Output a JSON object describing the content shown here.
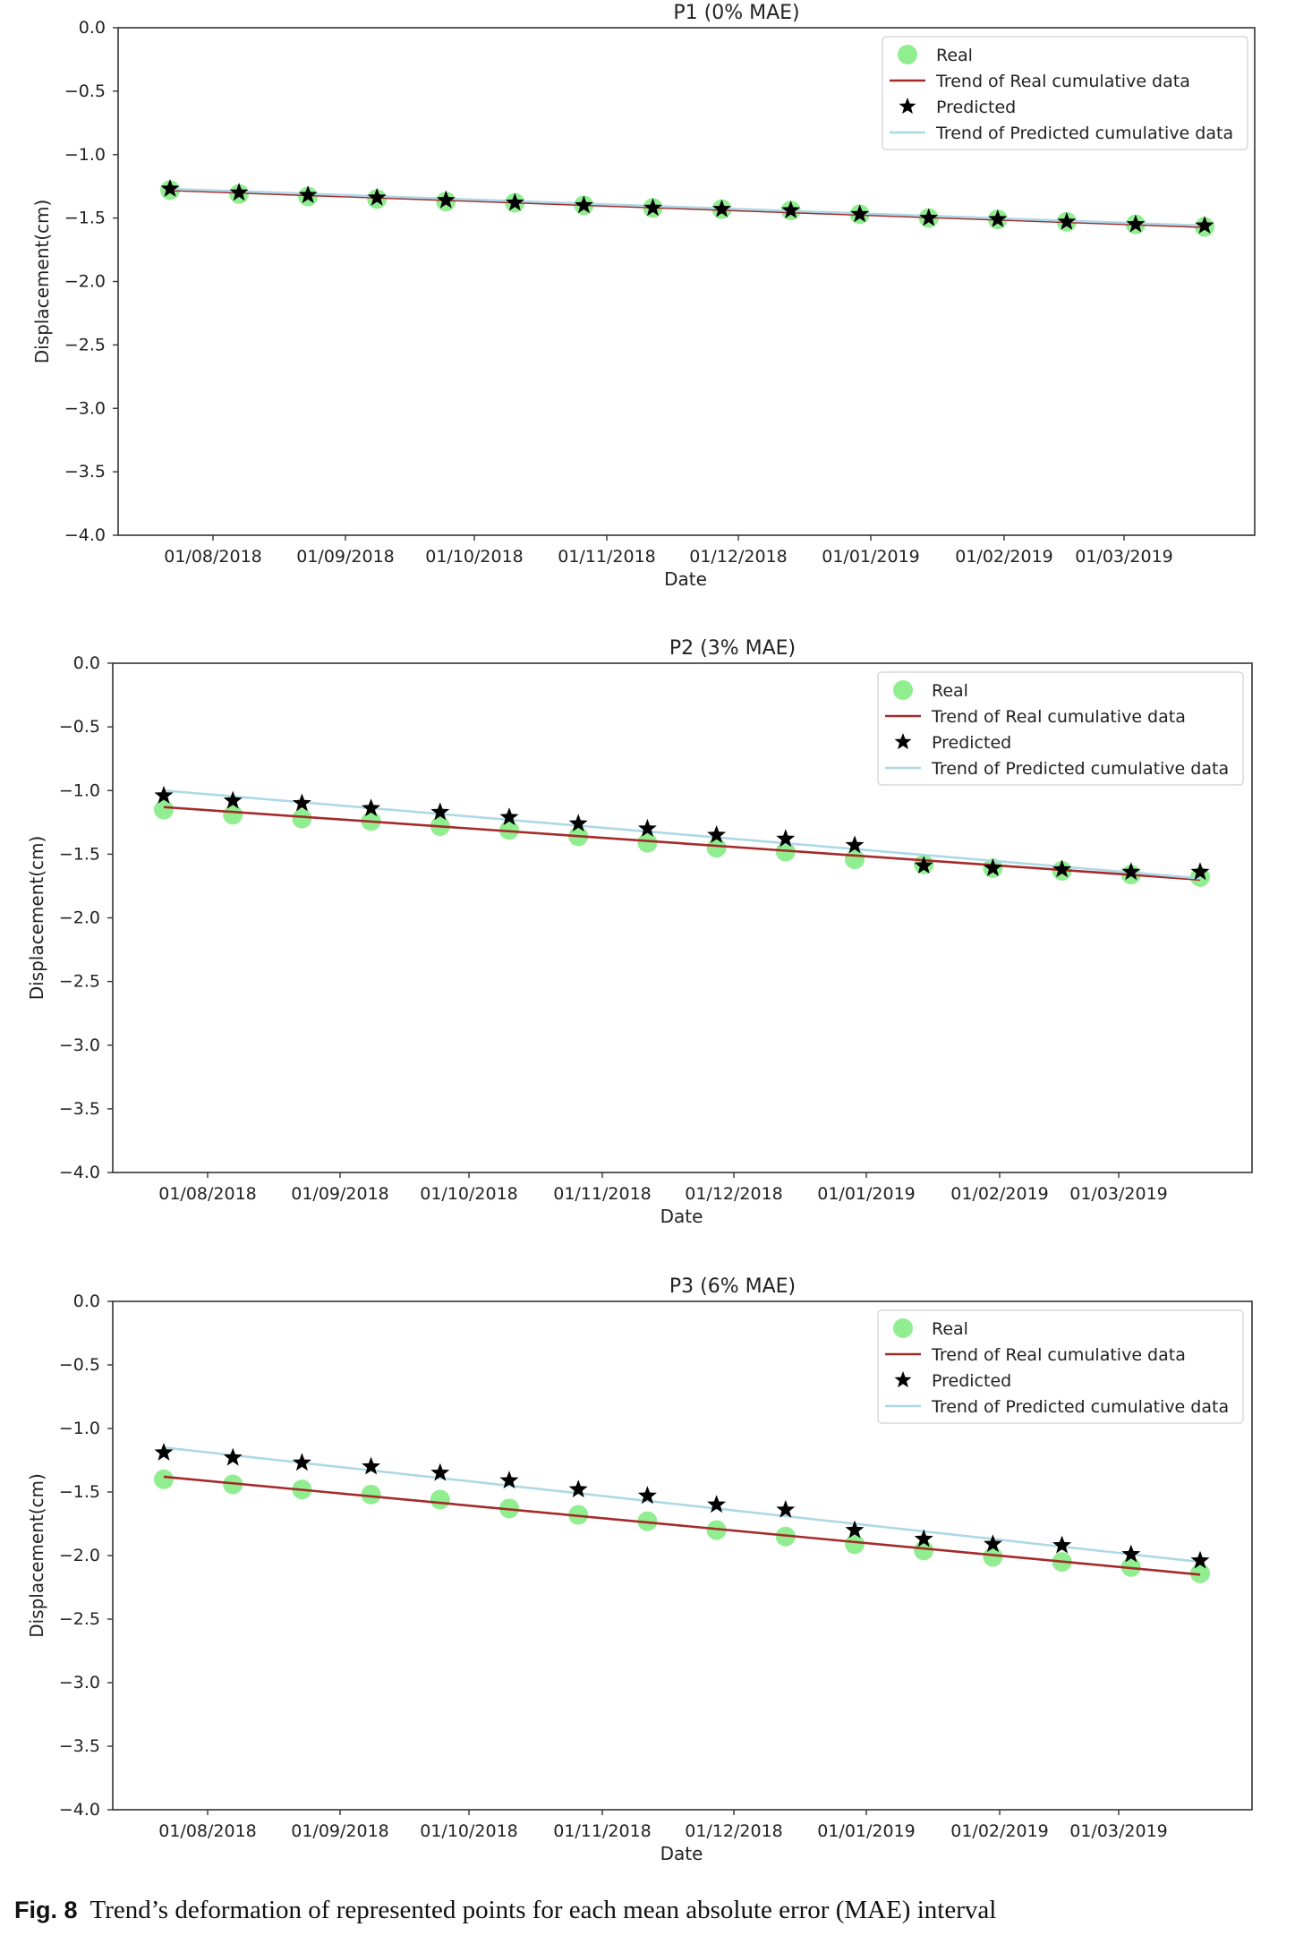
{
  "chart_data": [
    {
      "type": "line",
      "title": "P1 (0% MAE)",
      "xlabel": "Date",
      "ylabel": "Displacement(cm)",
      "ylim": [
        -4.0,
        0.0
      ],
      "yticks": [
        "0.0",
        "−0.5",
        "−1.0",
        "−1.5",
        "−2.0",
        "−2.5",
        "−3.0",
        "−3.5",
        "−4.0"
      ],
      "xtick_labels": [
        "01/08/2018",
        "01/09/2018",
        "01/10/2018",
        "01/11/2018",
        "01/12/2018",
        "01/01/2019",
        "01/02/2019",
        "01/03/2019"
      ],
      "legend": [
        "Real",
        "Trend of Real cumulative data",
        "Predicted",
        "Trend of Predicted cumulative data"
      ],
      "legend_position": "top-right",
      "x_index": [
        1,
        2,
        3,
        4,
        5,
        6,
        7,
        8,
        9,
        10,
        11,
        12,
        13,
        14,
        15,
        16
      ],
      "series": [
        {
          "name": "Real",
          "kind": "scatter",
          "color": "#90ee90",
          "values": [
            -1.28,
            -1.31,
            -1.33,
            -1.35,
            -1.37,
            -1.38,
            -1.4,
            -1.42,
            -1.43,
            -1.44,
            -1.47,
            -1.5,
            -1.51,
            -1.53,
            -1.55,
            -1.57
          ]
        },
        {
          "name": "Trend of Real cumulative data",
          "kind": "line",
          "color": "#a52a2a",
          "values": [
            -1.28,
            -1.57
          ]
        },
        {
          "name": "Predicted",
          "kind": "scatter",
          "color": "#000000",
          "values": [
            -1.27,
            -1.3,
            -1.32,
            -1.34,
            -1.36,
            -1.38,
            -1.4,
            -1.42,
            -1.43,
            -1.44,
            -1.47,
            -1.5,
            -1.51,
            -1.53,
            -1.55,
            -1.56
          ]
        },
        {
          "name": "Trend of Predicted cumulative data",
          "kind": "line",
          "color": "#add8e6",
          "values": [
            -1.27,
            -1.56
          ]
        }
      ]
    },
    {
      "type": "line",
      "title": "P2 (3% MAE)",
      "xlabel": "Date",
      "ylabel": "Displacement(cm)",
      "ylim": [
        -4.0,
        0.0
      ],
      "yticks": [
        "0.0",
        "−0.5",
        "−1.0",
        "−1.5",
        "−2.0",
        "−2.5",
        "−3.0",
        "−3.5",
        "−4.0"
      ],
      "xtick_labels": [
        "01/08/2018",
        "01/09/2018",
        "01/10/2018",
        "01/11/2018",
        "01/12/2018",
        "01/01/2019",
        "01/02/2019",
        "01/03/2019"
      ],
      "legend": [
        "Real",
        "Trend of Real cumulative data",
        "Predicted",
        "Trend of Predicted cumulative data"
      ],
      "legend_position": "top-right",
      "x_index": [
        1,
        2,
        3,
        4,
        5,
        6,
        7,
        8,
        9,
        10,
        11,
        12,
        13,
        14,
        15,
        16
      ],
      "series": [
        {
          "name": "Real",
          "kind": "scatter",
          "color": "#90ee90",
          "values": [
            -1.15,
            -1.19,
            -1.22,
            -1.24,
            -1.28,
            -1.31,
            -1.36,
            -1.41,
            -1.45,
            -1.48,
            -1.54,
            -1.58,
            -1.61,
            -1.63,
            -1.66,
            -1.68
          ]
        },
        {
          "name": "Trend of Real cumulative data",
          "kind": "line",
          "color": "#a52a2a",
          "values": [
            -1.13,
            -1.7
          ]
        },
        {
          "name": "Predicted",
          "kind": "scatter",
          "color": "#000000",
          "values": [
            -1.04,
            -1.08,
            -1.1,
            -1.14,
            -1.17,
            -1.21,
            -1.26,
            -1.3,
            -1.35,
            -1.38,
            -1.43,
            -1.59,
            -1.61,
            -1.62,
            -1.64,
            -1.64
          ]
        },
        {
          "name": "Trend of Predicted cumulative data",
          "kind": "line",
          "color": "#add8e6",
          "values": [
            -1.0,
            -1.69
          ]
        }
      ]
    },
    {
      "type": "line",
      "title": "P3 (6% MAE)",
      "xlabel": "Date",
      "ylabel": "Displacement(cm)",
      "ylim": [
        -4.0,
        0.0
      ],
      "yticks": [
        "0.0",
        "−0.5",
        "−1.0",
        "−1.5",
        "−2.0",
        "−2.5",
        "−3.0",
        "−3.5",
        "−4.0"
      ],
      "xtick_labels": [
        "01/08/2018",
        "01/09/2018",
        "01/10/2018",
        "01/11/2018",
        "01/12/2018",
        "01/01/2019",
        "01/02/2019",
        "01/03/2019"
      ],
      "legend": [
        "Real",
        "Trend of Real cumulative data",
        "Predicted",
        "Trend of Predicted cumulative data"
      ],
      "legend_position": "top-right",
      "x_index": [
        1,
        2,
        3,
        4,
        5,
        6,
        7,
        8,
        9,
        10,
        11,
        12,
        13,
        14,
        15,
        16
      ],
      "series": [
        {
          "name": "Real",
          "kind": "scatter",
          "color": "#90ee90",
          "values": [
            -1.4,
            -1.44,
            -1.48,
            -1.52,
            -1.56,
            -1.63,
            -1.68,
            -1.73,
            -1.8,
            -1.85,
            -1.91,
            -1.96,
            -2.01,
            -2.05,
            -2.09,
            -2.14
          ]
        },
        {
          "name": "Trend of Real cumulative data",
          "kind": "line",
          "color": "#a52a2a",
          "values": [
            -1.38,
            -2.15
          ]
        },
        {
          "name": "Predicted",
          "kind": "scatter",
          "color": "#000000",
          "values": [
            -1.19,
            -1.23,
            -1.27,
            -1.3,
            -1.35,
            -1.41,
            -1.48,
            -1.53,
            -1.6,
            -1.64,
            -1.8,
            -1.87,
            -1.91,
            -1.92,
            -1.99,
            -2.04
          ]
        },
        {
          "name": "Trend of Predicted cumulative data",
          "kind": "line",
          "color": "#add8e6",
          "values": [
            -1.15,
            -2.05
          ]
        }
      ]
    }
  ],
  "caption": {
    "label": "Fig. 8",
    "text": "Trend’s deformation of represented points for each mean absolute error (MAE) interval"
  }
}
